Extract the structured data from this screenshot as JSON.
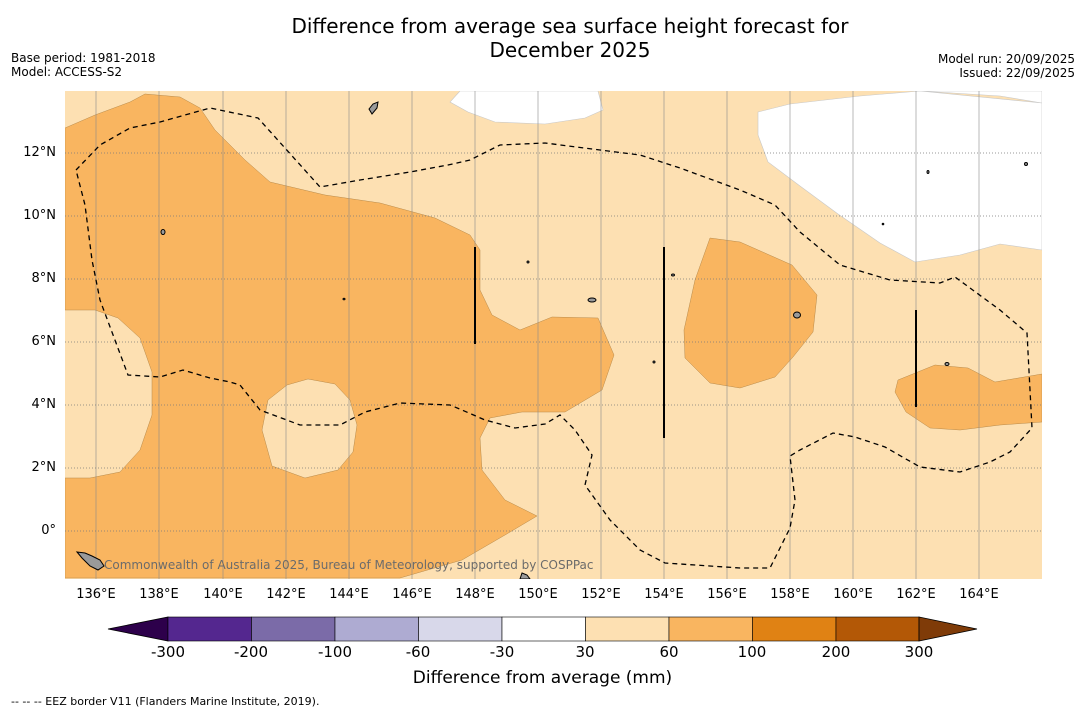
{
  "title_line1": "Difference from average sea surface height forecast for",
  "title_line2": "December 2025",
  "base_period": "Base period: 1981-2018",
  "model": "Model: ACCESS-S2",
  "model_run": "Model run: 20/09/2025",
  "issued": "Issued: 22/09/2025",
  "credit": "Commonwealth of Australia 2025, Bureau of Meteorology, supported by COSPPac",
  "footer": "--  --  -- EEZ border V11 (Flanders Marine Institute, 2019).",
  "colorbar": {
    "title": "Difference from average (mm)",
    "ticks": [
      "-300",
      "-200",
      "-100",
      "-60",
      "-30",
      "30",
      "60",
      "100",
      "200",
      "300"
    ],
    "bins": [
      {
        "range": "-300 to -200",
        "color": "#54278f"
      },
      {
        "range": "-200 to -100",
        "color": "#7b6ba8"
      },
      {
        "range": "-100 to -60",
        "color": "#aeabd2"
      },
      {
        "range": "-60 to -30",
        "color": "#d8d8ea"
      },
      {
        "range": "-30 to 30",
        "color": "#ffffff"
      },
      {
        "range": "30 to 60",
        "color": "#fde0b2"
      },
      {
        "range": "60 to 100",
        "color": "#f9b560"
      },
      {
        "range": "100 to 200",
        "color": "#e08214"
      },
      {
        "range": "200 to 300",
        "color": "#b35806"
      }
    ],
    "under_color": "#2d004b",
    "over_color": "#7f3b08"
  },
  "map": {
    "lon_labels": [
      "136°E",
      "138°E",
      "140°E",
      "142°E",
      "144°E",
      "146°E",
      "148°E",
      "150°E",
      "152°E",
      "154°E",
      "156°E",
      "158°E",
      "160°E",
      "162°E",
      "164°E"
    ],
    "lat_labels": [
      "12°N",
      "10°N",
      "8°N",
      "6°N",
      "4°N",
      "2°N",
      "0°"
    ],
    "colors": {
      "light_orange": "#fde0b2",
      "mid_orange": "#f9b560",
      "white": "#ffffff"
    }
  }
}
